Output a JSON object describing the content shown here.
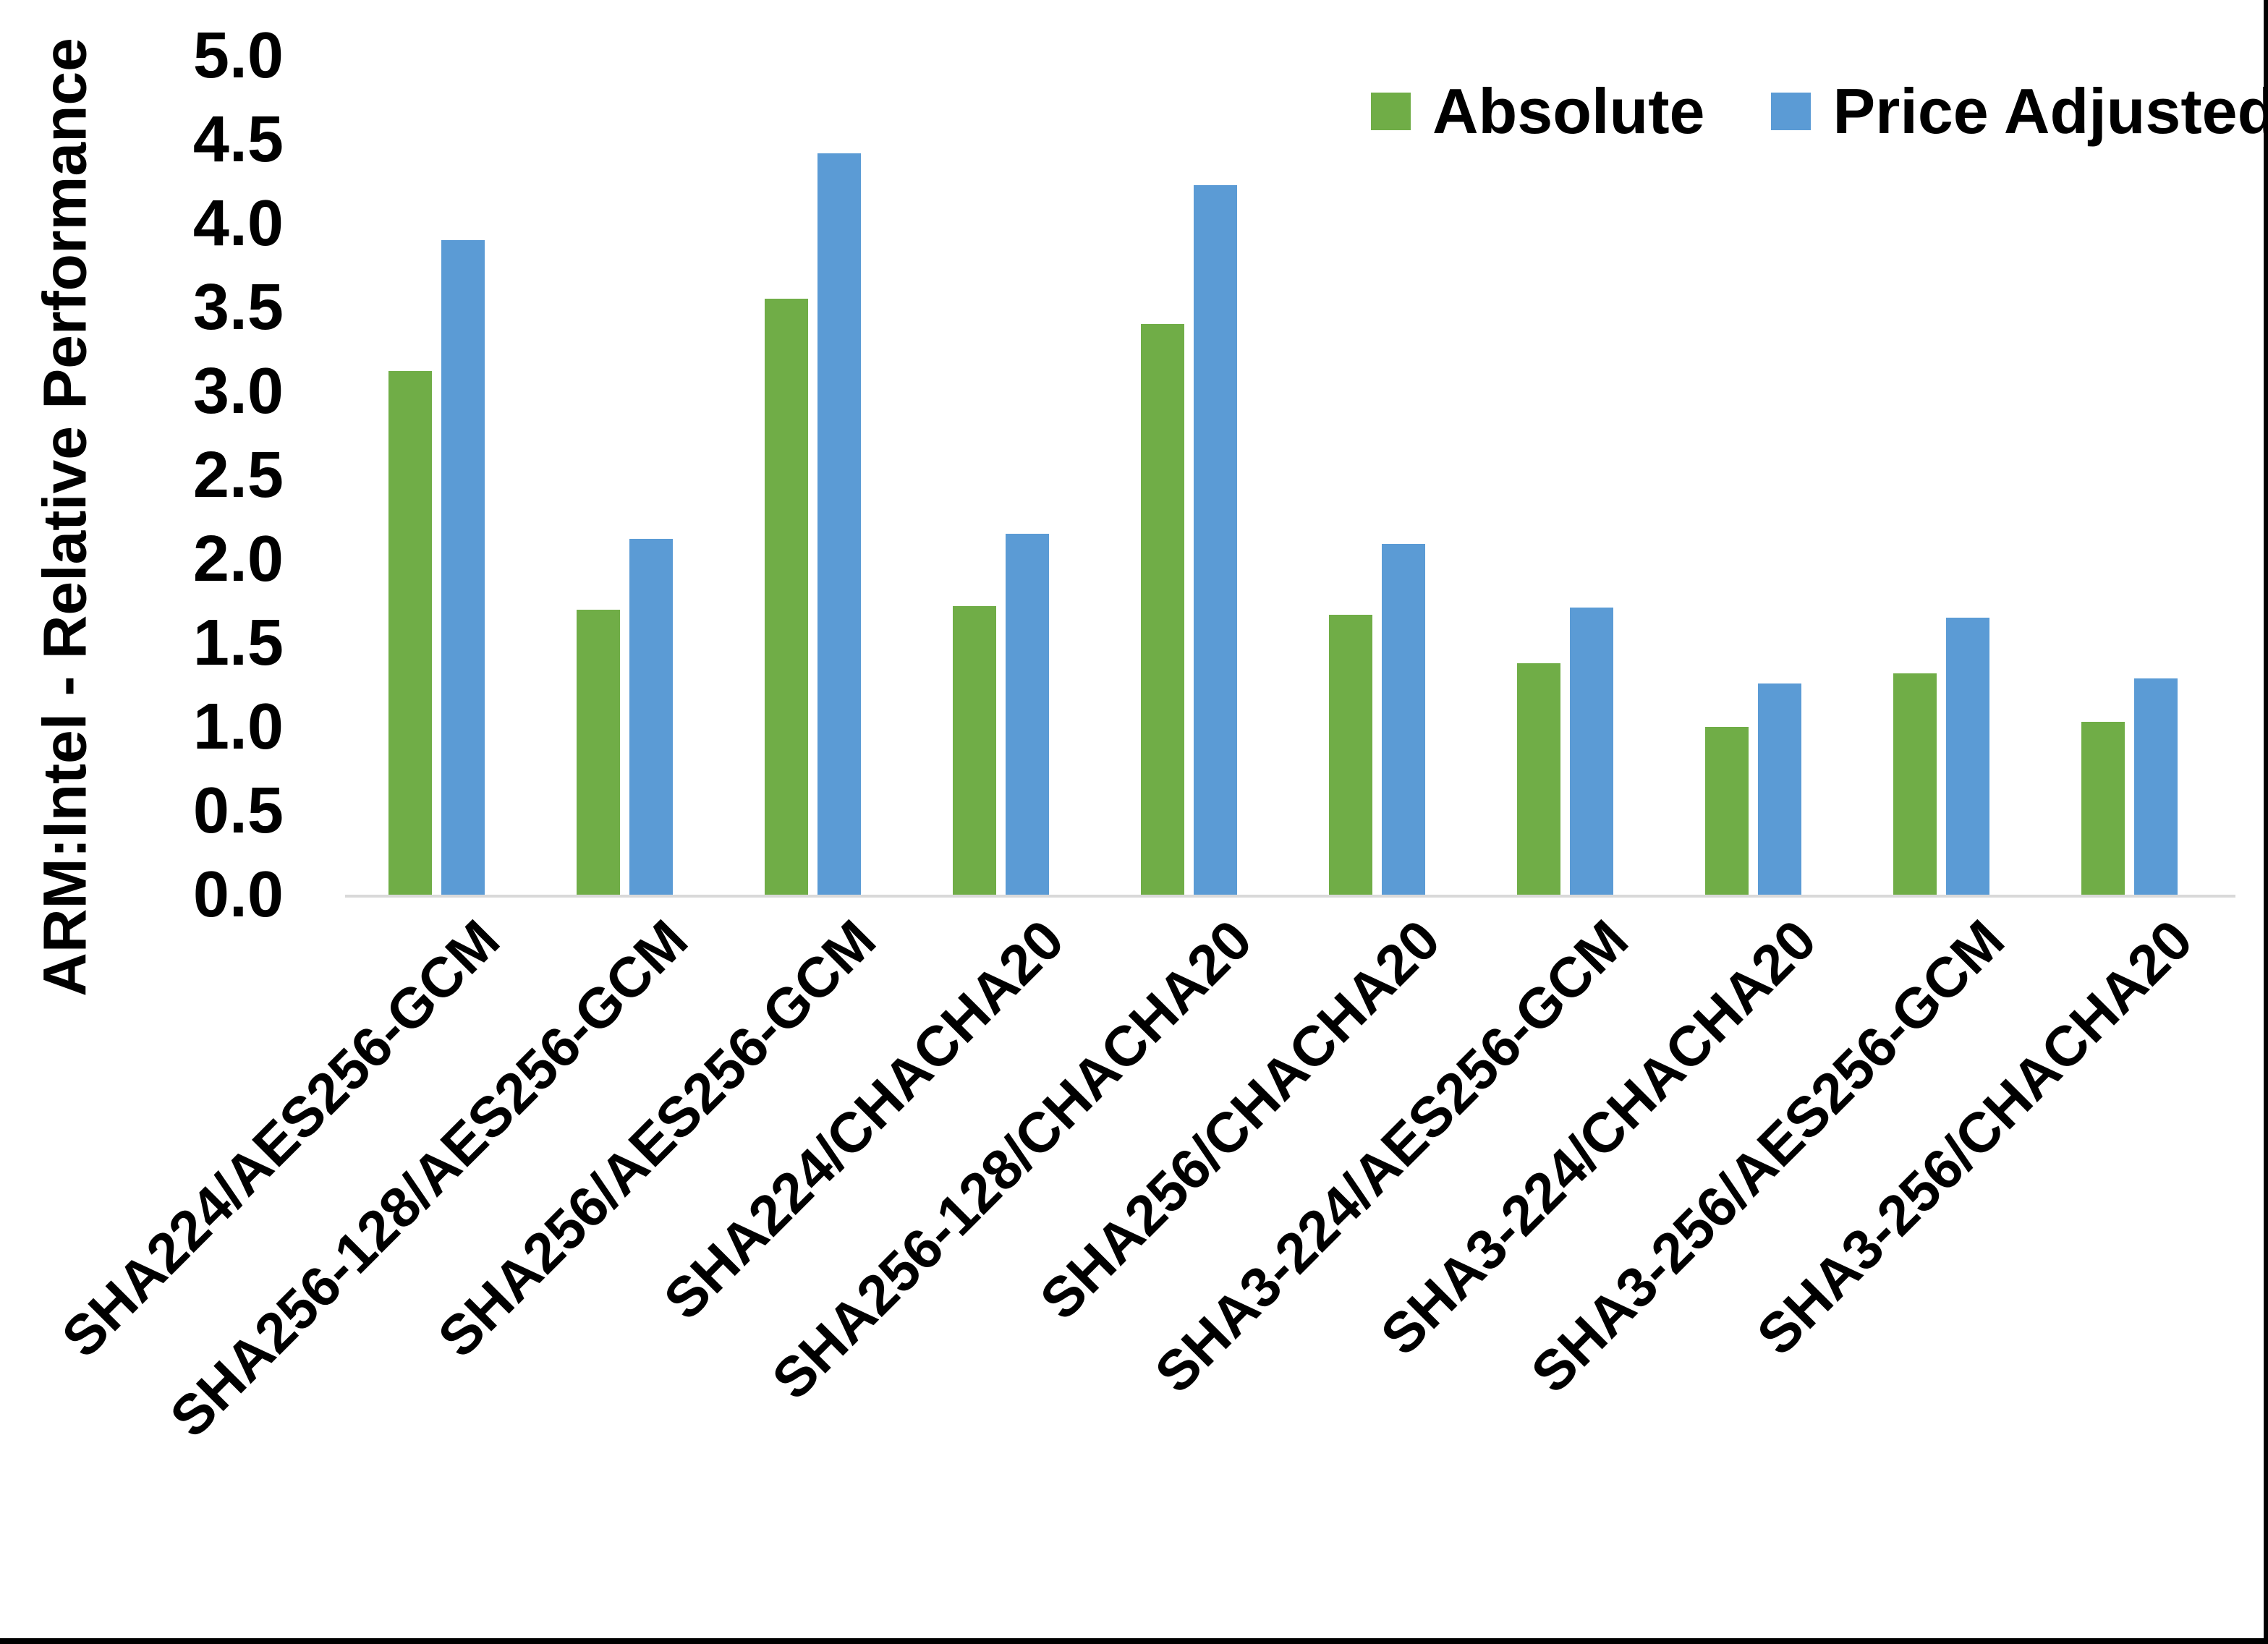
{
  "chart_data": {
    "type": "bar",
    "title": "",
    "xlabel": "",
    "ylabel": "ARM:Intel - Relative Performance",
    "ylim": [
      0,
      5
    ],
    "ytick_step": 0.5,
    "ytick_labels": [
      "5.0",
      "4.5",
      "4.0",
      "3.5",
      "3.0",
      "2.5",
      "2.0",
      "1.5",
      "1.0",
      "0.5",
      "0.0"
    ],
    "grid": false,
    "legend_position": "top-right",
    "categories": [
      "SHA224/AES256-GCM",
      "SHA256-128/AES256-GCM",
      "SHA256/AES256-GCM",
      "SHA224/CHACHA20",
      "SHA256-128/CHACHA20",
      "SHA256/CHACHA20",
      "SHA3-224/AES256-GCM",
      "SHA3-224/CHACHA20",
      "SHA3-256/AES256-GCM",
      "SHA3-256/CHACHA20"
    ],
    "series": [
      {
        "name": "Absolute",
        "color": "#70AD47",
        "values": [
          3.12,
          1.7,
          3.55,
          1.72,
          3.4,
          1.67,
          1.38,
          1.0,
          1.32,
          1.03
        ]
      },
      {
        "name": "Price Adjusted",
        "color": "#5B9BD5",
        "values": [
          3.9,
          2.12,
          4.42,
          2.15,
          4.23,
          2.09,
          1.71,
          1.26,
          1.65,
          1.29
        ]
      }
    ]
  },
  "colors": {
    "background": "#FFFFFF",
    "axis_line": "#D9D9D9",
    "text": "#000000",
    "frame_border": "#000000"
  }
}
